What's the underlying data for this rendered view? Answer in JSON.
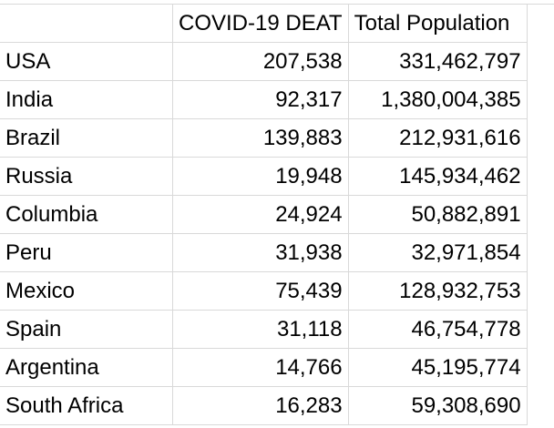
{
  "header": {
    "country": "",
    "deaths": "COVID-19 DEAT",
    "population": "Total Population"
  },
  "rows": [
    {
      "country": "USA",
      "deaths": "207,538",
      "population": "331,462,797"
    },
    {
      "country": "India",
      "deaths": "92,317",
      "population": "1,380,004,385"
    },
    {
      "country": "Brazil",
      "deaths": "139,883",
      "population": "212,931,616"
    },
    {
      "country": "Russia",
      "deaths": "19,948",
      "population": "145,934,462"
    },
    {
      "country": "Columbia",
      "deaths": "24,924",
      "population": "50,882,891"
    },
    {
      "country": "Peru",
      "deaths": "31,938",
      "population": "32,971,854"
    },
    {
      "country": "Mexico",
      "deaths": "75,439",
      "population": "128,932,753"
    },
    {
      "country": "Spain",
      "deaths": "31,118",
      "population": "46,754,778"
    },
    {
      "country": "Argentina",
      "deaths": "14,766",
      "population": "45,195,774"
    },
    {
      "country": "South Africa",
      "deaths": "16,283",
      "population": "59,308,690"
    }
  ],
  "colors": {
    "gridline": "#d9d9d9",
    "text": "#000000",
    "background": "#ffffff"
  }
}
